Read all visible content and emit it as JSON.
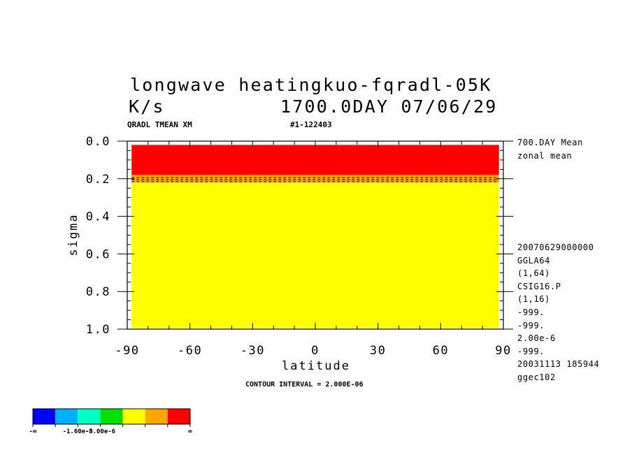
{
  "title_line1": "longwave heatingkuo-fqradl-05K",
  "title_units": "K/s",
  "title_time": "1700.0DAY 07/06/29",
  "var_label": "QRADL TMEAN XM",
  "run_label": "#1-122403",
  "side_top": [
    "700.DAY Mean",
    "zonal mean"
  ],
  "side_info": [
    "20070629000000",
    "GGLA64",
    "(1,64)",
    "CSIG16.P",
    "(1,16)",
    "-999.",
    "-999.",
    "2.00e-6",
    "-999.",
    "20031113 185944",
    "ggec102"
  ],
  "contour_interval": "CONTOUR INTERVAL = 2.000E-06",
  "colors": {
    "red": "#ff0000",
    "orange": "#ffa500",
    "yellow": "#ffff00",
    "green": "#00e000",
    "teal": "#00ffc0",
    "lightblue": "#00b0ff",
    "blue": "#0000ff"
  },
  "chart_data": {
    "type": "heatmap",
    "title": "longwave heatingkuo-fqradl-05K",
    "xlabel": "latitude",
    "ylabel": "sigma",
    "xlim": [
      -90,
      90
    ],
    "ylim": [
      1.0,
      0.0
    ],
    "x_ticks": [
      "-90",
      "-60",
      "-30",
      "0",
      "30",
      "60",
      "90"
    ],
    "x_tick_values": [
      -90,
      -60,
      -30,
      0,
      30,
      60,
      90
    ],
    "y_ticks": [
      "0.0",
      "0.2",
      "0.4",
      "0.6",
      "0.8",
      "1.0"
    ],
    "y_tick_values": [
      0.0,
      0.2,
      0.4,
      0.6,
      0.8,
      1.0
    ],
    "data_extent": {
      "lat": [
        -87.9,
        87.9
      ],
      "sigma": [
        0.02,
        0.995
      ]
    },
    "bands": [
      {
        "sigma_from": 0.02,
        "sigma_to": 0.18,
        "color": "#ff0000"
      },
      {
        "sigma_from": 0.18,
        "sigma_to": 0.22,
        "color": "#ffa500"
      },
      {
        "sigma_from": 0.22,
        "sigma_to": 0.995,
        "color": "#ffff00"
      }
    ],
    "dashed_contours_sigma": [
      0.194,
      0.205,
      0.216
    ],
    "colorbar": {
      "colors": [
        "#0000ff",
        "#00b0ff",
        "#00ffc0",
        "#00e000",
        "#ffff00",
        "#ffa500",
        "#ff0000"
      ],
      "labels": [
        "-∞",
        "-1.60e-5",
        "-8.00e-6",
        "∞"
      ]
    },
    "grid": false
  }
}
